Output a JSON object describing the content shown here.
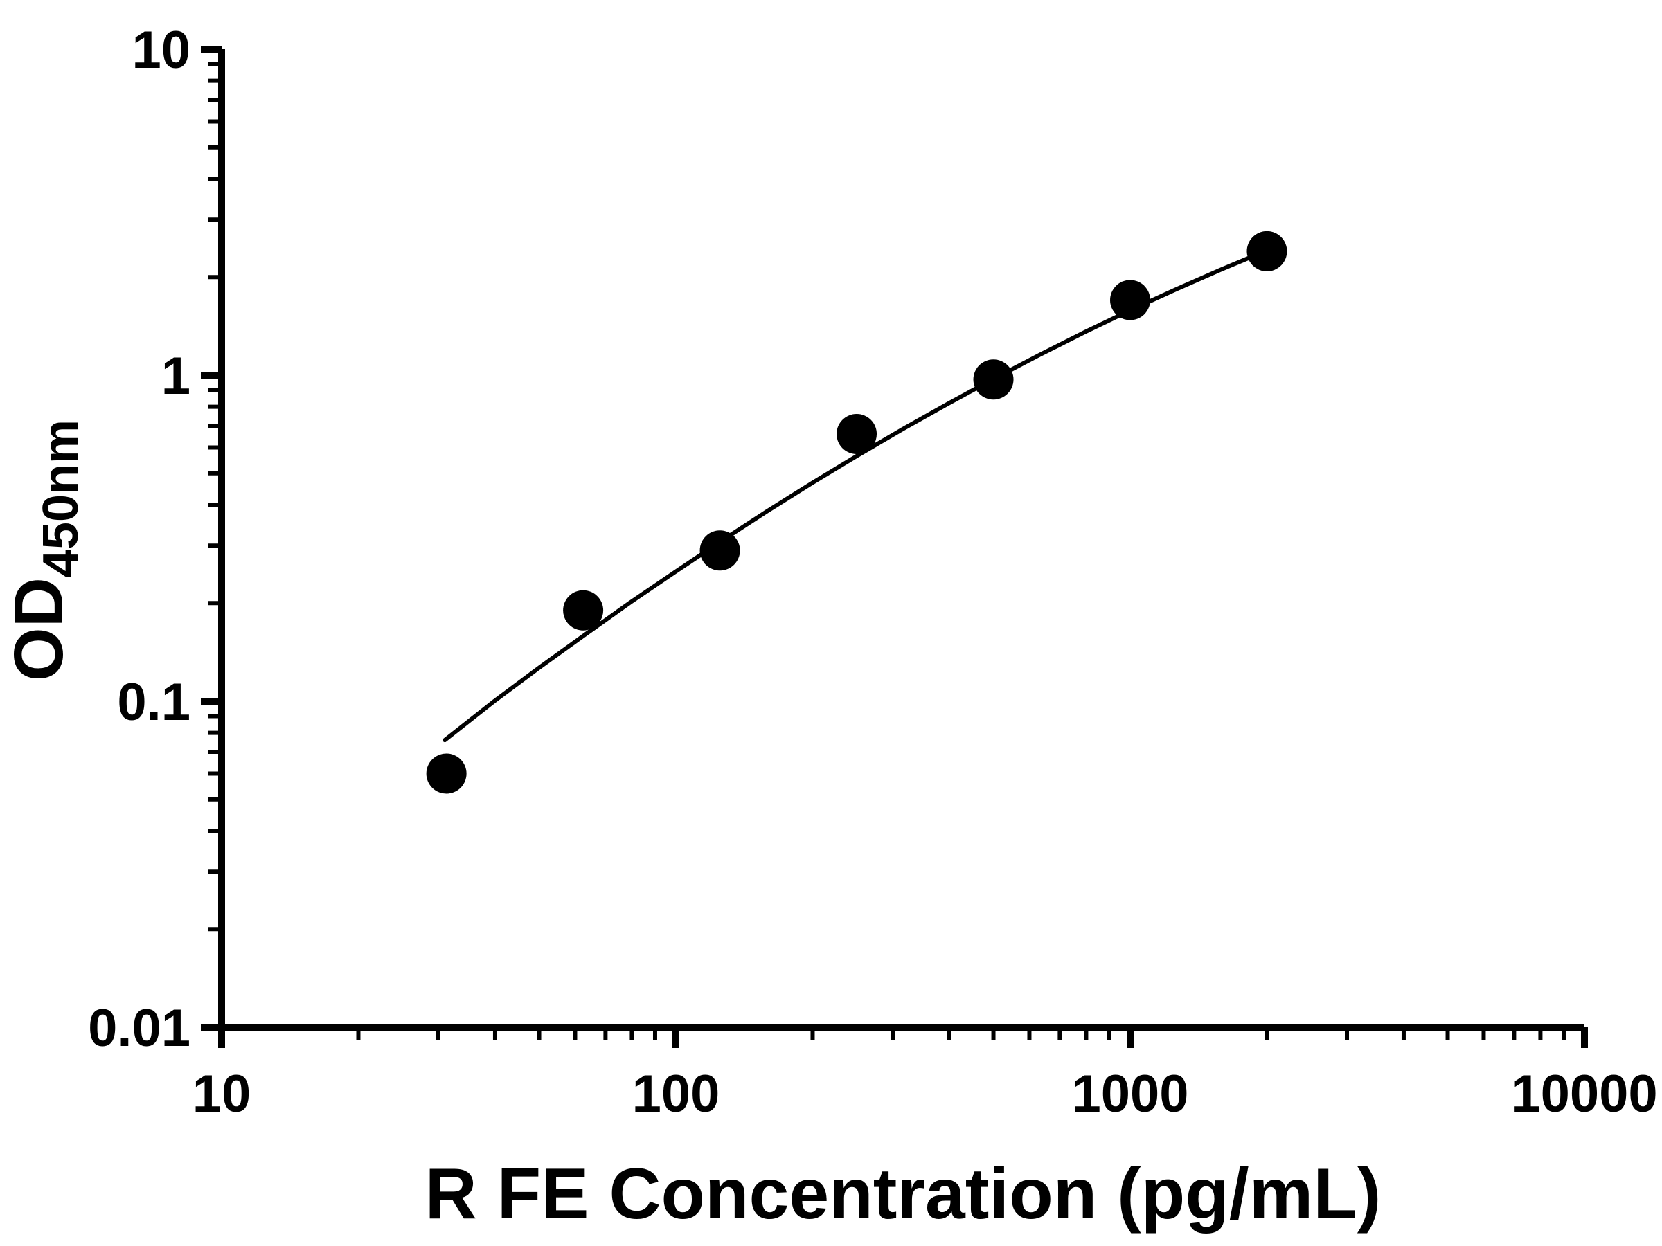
{
  "figure": {
    "background": "#ffffff",
    "foreground": "#000000"
  },
  "chart_data": {
    "type": "scatter",
    "title": "",
    "xlabel": "R FE Concentration (pg/mL)",
    "ylabel": "OD",
    "ylabel_subscript": "450nm",
    "x_scale": "log",
    "y_scale": "log",
    "xlim": [
      10,
      10000
    ],
    "ylim": [
      0.01,
      10
    ],
    "x_ticks": [
      10,
      100,
      1000,
      10000
    ],
    "x_tick_labels": [
      "10",
      "100",
      "1000",
      "10000"
    ],
    "y_ticks": [
      0.01,
      0.1,
      1,
      10
    ],
    "y_tick_labels": [
      "0.01",
      "0.1",
      "1",
      "10"
    ],
    "minor_ticks": true,
    "grid": false,
    "legend": null,
    "axis_color": "#000000",
    "series": [
      {
        "name": "standard-curve-points",
        "marker": "filled-circle",
        "color": "#000000",
        "points": [
          {
            "x": 31.25,
            "y": 0.06
          },
          {
            "x": 62.5,
            "y": 0.19
          },
          {
            "x": 125,
            "y": 0.29
          },
          {
            "x": 250,
            "y": 0.66
          },
          {
            "x": 500,
            "y": 0.97
          },
          {
            "x": 1000,
            "y": 1.7
          },
          {
            "x": 2000,
            "y": 2.4
          }
        ]
      }
    ],
    "fit_curve": {
      "color": "#000000",
      "points": [
        [
          31,
          0.076
        ],
        [
          39.8,
          0.1
        ],
        [
          50.1,
          0.127
        ],
        [
          63.1,
          0.16
        ],
        [
          79.4,
          0.201
        ],
        [
          100,
          0.25
        ],
        [
          125.9,
          0.31
        ],
        [
          158.5,
          0.382
        ],
        [
          199.5,
          0.467
        ],
        [
          251.2,
          0.567
        ],
        [
          316.2,
          0.684
        ],
        [
          398.1,
          0.819
        ],
        [
          501.2,
          0.975
        ],
        [
          631,
          1.153
        ],
        [
          794.3,
          1.355
        ],
        [
          1000,
          1.581
        ],
        [
          1258.9,
          1.831
        ],
        [
          1584.9,
          2.109
        ],
        [
          1995.3,
          2.411
        ]
      ]
    }
  }
}
